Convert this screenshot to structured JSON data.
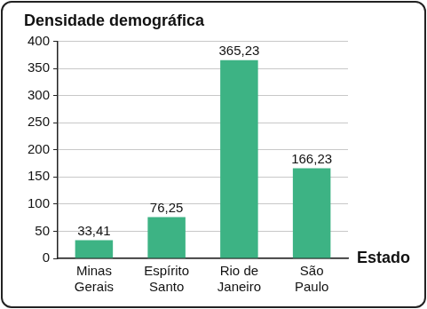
{
  "chart_data": {
    "type": "bar",
    "title": "Densidade demográfica",
    "x_label": "Estado",
    "categories": [
      "Minas Gerais",
      "Espírito Santo",
      "Rio de Janeiro",
      "São Paulo"
    ],
    "values": [
      33.41,
      76.25,
      365.23,
      166.23
    ],
    "value_labels": [
      "33,41",
      "76,25",
      "365,23",
      "166,23"
    ],
    "color": "#3db384",
    "ylim": [
      0,
      400
    ],
    "yticks": [
      0,
      50,
      100,
      150,
      200,
      250,
      300,
      350,
      400
    ],
    "grid": true,
    "data_labels": true
  }
}
